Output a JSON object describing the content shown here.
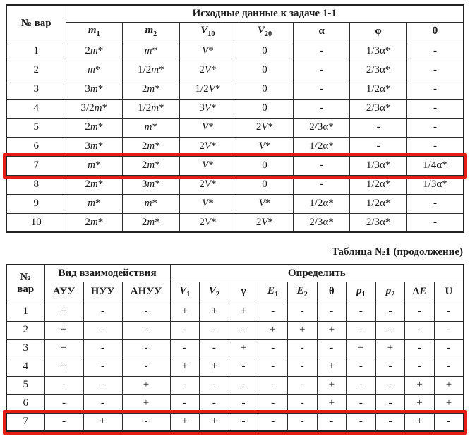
{
  "highlight_color": "#e61d17",
  "table1": {
    "title": "Исходные данные к задаче 1-1",
    "var_header": "№ вар",
    "columns": [
      "m_1",
      "m_2",
      "V_10",
      "V_20",
      "α",
      "φ",
      "θ"
    ],
    "rows": [
      {
        "var": "1",
        "highlight": false,
        "values": [
          "2m*",
          "m*",
          "V*",
          "0",
          "-",
          "1/3α*",
          "-"
        ]
      },
      {
        "var": "2",
        "highlight": false,
        "values": [
          "m*",
          "1/2m*",
          "2V*",
          "0",
          "-",
          "2/3α*",
          "-"
        ]
      },
      {
        "var": "3",
        "highlight": false,
        "values": [
          "3m*",
          "2m*",
          "1/2V*",
          "0",
          "-",
          "1/2α*",
          "-"
        ]
      },
      {
        "var": "4",
        "highlight": false,
        "values": [
          "3/2m*",
          "1/2m*",
          "3V*",
          "0",
          "-",
          "2/3α*",
          "-"
        ]
      },
      {
        "var": "5",
        "highlight": false,
        "values": [
          "2m*",
          "m*",
          "V*",
          "2V*",
          "2/3α*",
          "-",
          "-"
        ]
      },
      {
        "var": "6",
        "highlight": false,
        "values": [
          "3m*",
          "2m*",
          "2V*",
          "V*",
          "1/2α*",
          "-",
          "-"
        ]
      },
      {
        "var": "7",
        "highlight": true,
        "values": [
          "m*",
          "2m*",
          "V*",
          "0",
          "-",
          "1/3α*",
          "1/4α*"
        ]
      },
      {
        "var": "8",
        "highlight": false,
        "values": [
          "2m*",
          "3m*",
          "2V*",
          "0",
          "-",
          "1/2α*",
          "1/3α*"
        ]
      },
      {
        "var": "9",
        "highlight": false,
        "values": [
          "m*",
          "m*",
          "V*",
          "V*",
          "1/2α*",
          "1/2α*",
          "-"
        ]
      },
      {
        "var": "10",
        "highlight": false,
        "values": [
          "2m*",
          "2m*",
          "2V*",
          "2V*",
          "2/3α*",
          "2/3α*",
          "-"
        ]
      }
    ]
  },
  "caption": "Таблица №1 (продолжение)",
  "table2": {
    "var_header_line1": "№",
    "var_header_line2": "вар",
    "group1_title": "Вид взаимодействия",
    "group1_columns": [
      "АУУ",
      "НУУ",
      "АНУУ"
    ],
    "group2_title": "Определить",
    "group2_columns": [
      "V_1",
      "V_2",
      "γ",
      "E_1",
      "E_2",
      "θ",
      "p_1",
      "p_2",
      "ΔE",
      "U"
    ],
    "rows": [
      {
        "var": "1",
        "highlight": false,
        "values": [
          "+",
          "-",
          "-",
          "+",
          "+",
          "+",
          "-",
          "-",
          "-",
          "-",
          "-",
          "-",
          "-"
        ]
      },
      {
        "var": "2",
        "highlight": false,
        "values": [
          "+",
          "-",
          "-",
          "-",
          "-",
          "-",
          "+",
          "+",
          "+",
          "-",
          "-",
          "-",
          "-"
        ]
      },
      {
        "var": "3",
        "highlight": false,
        "values": [
          "+",
          "-",
          "-",
          "-",
          "-",
          "+",
          "-",
          "-",
          "-",
          "+",
          "+",
          "-",
          "-"
        ]
      },
      {
        "var": "4",
        "highlight": false,
        "values": [
          "+",
          "-",
          "-",
          "+",
          "+",
          "-",
          "-",
          "-",
          "+",
          "-",
          "-",
          "-",
          "-"
        ]
      },
      {
        "var": "5",
        "highlight": false,
        "values": [
          "-",
          "-",
          "+",
          "-",
          "-",
          "-",
          "-",
          "-",
          "+",
          "-",
          "-",
          "+",
          "+"
        ]
      },
      {
        "var": "6",
        "highlight": false,
        "values": [
          "-",
          "-",
          "+",
          "-",
          "-",
          "-",
          "-",
          "-",
          "+",
          "-",
          "-",
          "+",
          "+"
        ]
      },
      {
        "var": "7",
        "highlight": true,
        "values": [
          "-",
          "+",
          "-",
          "+",
          "+",
          "-",
          "-",
          "-",
          "-",
          "-",
          "-",
          "+",
          "-"
        ]
      }
    ]
  }
}
